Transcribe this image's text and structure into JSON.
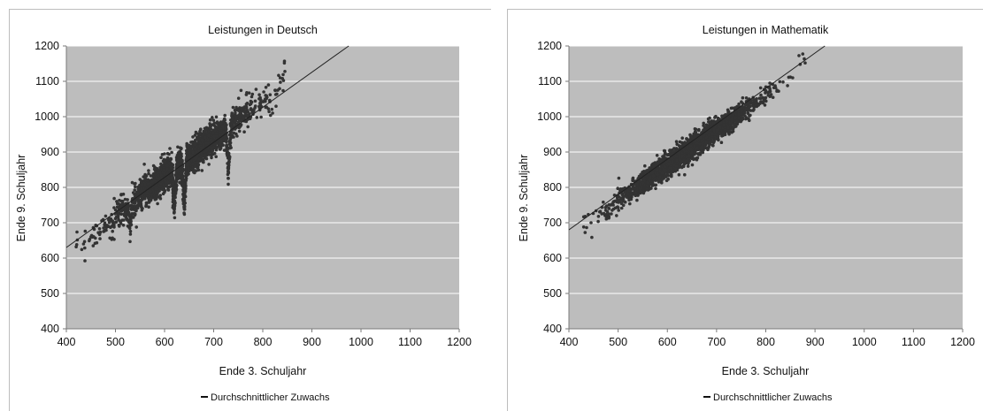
{
  "chart_data": [
    {
      "type": "scatter",
      "title": "Leistungen in Deutsch",
      "xlabel": "Ende 3. Schuljahr",
      "ylabel": "Ende 9. Schuljahr",
      "xlim": [
        400,
        1200
      ],
      "ylim": [
        400,
        1200
      ],
      "xticks": [
        "400",
        "500",
        "600",
        "700",
        "800",
        "900",
        "1000",
        "1100",
        "1200"
      ],
      "yticks": [
        "400",
        "500",
        "600",
        "700",
        "800",
        "900",
        "1000",
        "1100",
        "1200"
      ],
      "grid": "horizontal",
      "legend_position": "bottom",
      "legend": [
        "Durchschnittlicher Zuwachs"
      ],
      "regression_line": {
        "x": [
          400,
          975
        ],
        "y": [
          630,
          1200
        ]
      },
      "series": [
        {
          "x": [
            420,
            435,
            450,
            465,
            480,
            495,
            505,
            515,
            525,
            535,
            545,
            555,
            565,
            575,
            585,
            595,
            605,
            615,
            625,
            635,
            645,
            655,
            665,
            675,
            685,
            695,
            705,
            715,
            725,
            735,
            745,
            755,
            765,
            775,
            785,
            795,
            805,
            815,
            825,
            840,
            845,
            620,
            730,
            820,
            640,
            530
          ],
          "y": [
            632,
            640,
            660,
            672,
            690,
            700,
            722,
            738,
            748,
            758,
            770,
            782,
            792,
            802,
            815,
            826,
            838,
            848,
            858,
            868,
            878,
            890,
            900,
            912,
            925,
            935,
            945,
            955,
            968,
            978,
            988,
            998,
            1008,
            1020,
            1030,
            1040,
            1050,
            1062,
            1075,
            1108,
            1128,
            748,
            845,
            1010,
            752,
            692
          ]
        }
      ],
      "points_approx_count": 2400
    },
    {
      "type": "scatter",
      "title": "Leistungen in Mathematik",
      "xlabel": "Ende 3. Schuljahr",
      "ylabel": "Ende 9. Schuljahr",
      "xlim": [
        400,
        1200
      ],
      "ylim": [
        400,
        1200
      ],
      "xticks": [
        "400",
        "500",
        "600",
        "700",
        "800",
        "900",
        "1000",
        "1100",
        "1200"
      ],
      "yticks": [
        "400",
        "500",
        "600",
        "700",
        "800",
        "900",
        "1000",
        "1100",
        "1200"
      ],
      "grid": "horizontal",
      "legend_position": "bottom",
      "legend": [
        "Durchschnittlicher Zuwachs"
      ],
      "regression_line": {
        "x": [
          400,
          920
        ],
        "y": [
          680,
          1200
        ]
      },
      "series": [
        {
          "x": [
            430,
            445,
            460,
            475,
            490,
            505,
            520,
            535,
            550,
            565,
            580,
            595,
            610,
            625,
            640,
            655,
            670,
            685,
            700,
            715,
            730,
            745,
            760,
            775,
            790,
            805,
            820,
            835,
            850,
            870,
            880
          ],
          "y": [
            688,
            700,
            718,
            735,
            750,
            765,
            782,
            798,
            812,
            828,
            842,
            858,
            872,
            888,
            902,
            918,
            932,
            948,
            962,
            976,
            992,
            1006,
            1022,
            1038,
            1052,
            1068,
            1082,
            1098,
            1112,
            1148,
            1152
          ]
        }
      ],
      "points_approx_count": 2400
    }
  ]
}
